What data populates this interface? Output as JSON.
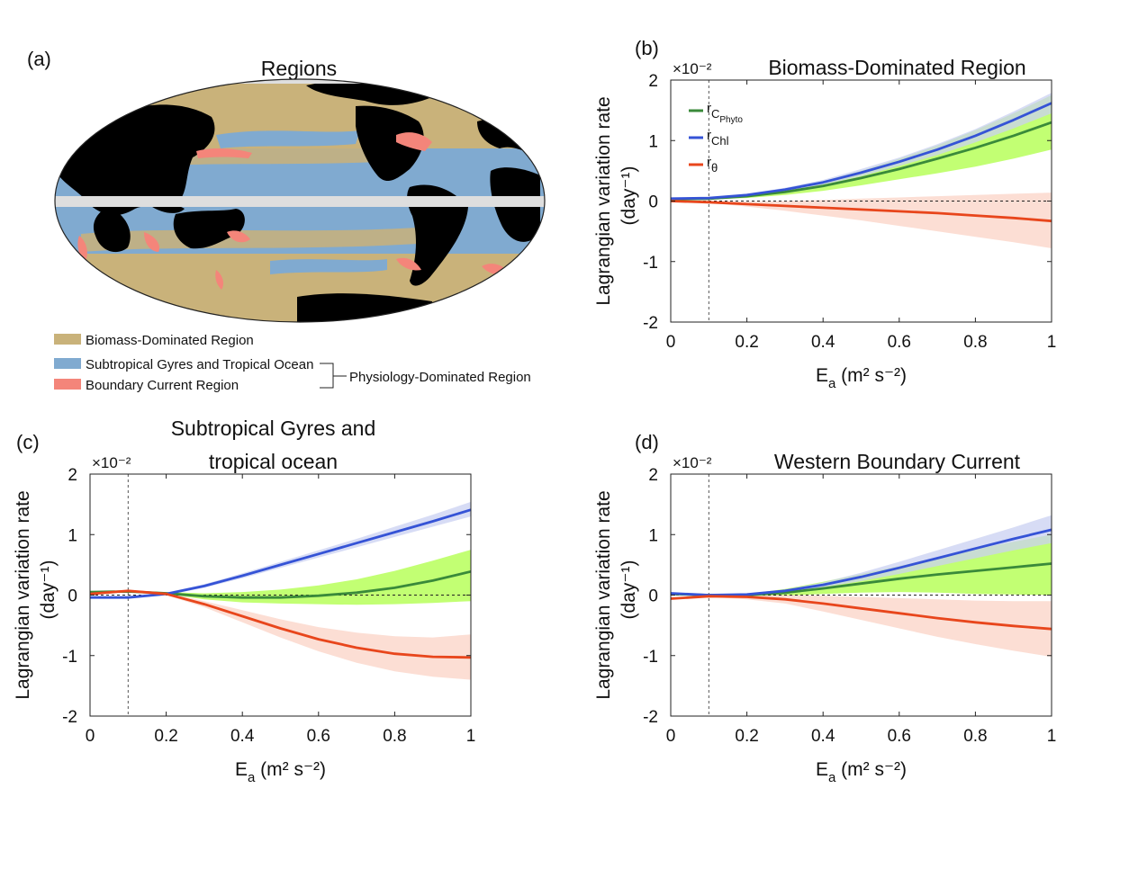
{
  "map_panel": {
    "label": "(a)",
    "title": "Regions",
    "legend": [
      {
        "name": "Biomass-Dominated Region",
        "color": "#c9b27a"
      },
      {
        "name": "Subtropical Gyres and Tropical Ocean",
        "color": "#80aad0"
      },
      {
        "name": "Boundary Current Region",
        "color": "#f4857a"
      }
    ],
    "group_label": "Physiology-Dominated Region",
    "colors": {
      "land": "#000000",
      "ocean_gyre": "#80aad0",
      "biomass": "#c9b27a",
      "boundary": "#f4857a",
      "masked": "#dedede"
    }
  },
  "colors": {
    "c_phyto": "#3a8a3a",
    "c_phyto_band": "#b7ff5a",
    "chl": "#3553d6",
    "chl_band": "#c9d0f2",
    "theta": "#e8461c",
    "theta_band": "#fbd3c6"
  },
  "chart_data": [
    {
      "label": "(b)",
      "type": "line",
      "title": "Biomass-Dominated Region",
      "xlabel": "E",
      "xlabel_sub": "a",
      "xlabel_units": " (m² s⁻²)",
      "ylabel_line1": "Lagrangian variation rate",
      "ylabel_line2": "(day⁻¹)",
      "yscale_label": "×10⁻²",
      "xlim": [
        0,
        1
      ],
      "ylim": [
        -2,
        2
      ],
      "xticks": [
        "0",
        "0.2",
        "0.4",
        "0.6",
        "0.8",
        "1"
      ],
      "yticks": [
        "-2",
        "-1",
        "0",
        "1",
        "2"
      ],
      "vline_x": 0.1,
      "legend": [
        {
          "key": "c_phyto",
          "label": "r",
          "sub": "C",
          "subsub": "Phyto"
        },
        {
          "key": "chl",
          "label": "r",
          "sub": "Chl",
          "subsub": ""
        },
        {
          "key": "theta",
          "label": "r",
          "sub": "θ",
          "subsub": ""
        }
      ],
      "x": [
        0,
        0.1,
        0.2,
        0.3,
        0.4,
        0.5,
        0.6,
        0.7,
        0.8,
        0.9,
        1.0
      ],
      "series": [
        {
          "key": "c_phyto",
          "values": [
            0.03,
            0.04,
            0.08,
            0.15,
            0.25,
            0.38,
            0.53,
            0.7,
            0.88,
            1.08,
            1.3
          ],
          "lower": [
            0.03,
            0.03,
            0.05,
            0.1,
            0.17,
            0.26,
            0.36,
            0.46,
            0.57,
            0.7,
            0.85
          ],
          "upper": [
            0.04,
            0.05,
            0.11,
            0.2,
            0.33,
            0.5,
            0.7,
            0.92,
            1.17,
            1.45,
            1.75
          ]
        },
        {
          "key": "chl",
          "values": [
            0.04,
            0.05,
            0.1,
            0.19,
            0.31,
            0.47,
            0.65,
            0.85,
            1.08,
            1.34,
            1.62
          ],
          "lower": [
            0.03,
            0.04,
            0.08,
            0.16,
            0.27,
            0.41,
            0.58,
            0.76,
            0.97,
            1.2,
            1.45
          ],
          "upper": [
            0.05,
            0.06,
            0.12,
            0.22,
            0.35,
            0.53,
            0.72,
            0.94,
            1.19,
            1.48,
            1.79
          ]
        },
        {
          "key": "theta",
          "values": [
            0.0,
            -0.02,
            -0.05,
            -0.08,
            -0.11,
            -0.14,
            -0.17,
            -0.2,
            -0.24,
            -0.28,
            -0.33
          ],
          "lower": [
            -0.01,
            -0.03,
            -0.09,
            -0.16,
            -0.24,
            -0.32,
            -0.41,
            -0.5,
            -0.59,
            -0.68,
            -0.78
          ],
          "upper": [
            0.01,
            0.0,
            -0.01,
            0.0,
            0.02,
            0.04,
            0.06,
            0.08,
            0.1,
            0.12,
            0.14
          ]
        }
      ]
    },
    {
      "label": "(c)",
      "type": "line",
      "title_lines": [
        "Subtropical Gyres and",
        "tropical ocean"
      ],
      "xlabel": "E",
      "xlabel_sub": "a",
      "xlabel_units": " (m² s⁻²)",
      "ylabel_line1": "Lagrangian variation rate",
      "ylabel_line2": "(day⁻¹)",
      "yscale_label": "×10⁻²",
      "xlim": [
        0,
        1
      ],
      "ylim": [
        -2,
        2
      ],
      "xticks": [
        "0",
        "0.2",
        "0.4",
        "0.6",
        "0.8",
        "1"
      ],
      "yticks": [
        "-2",
        "-1",
        "0",
        "1",
        "2"
      ],
      "vline_x": 0.1,
      "x": [
        0,
        0.1,
        0.2,
        0.3,
        0.4,
        0.5,
        0.6,
        0.7,
        0.8,
        0.9,
        1.0
      ],
      "series": [
        {
          "key": "c_phyto",
          "values": [
            0.05,
            0.06,
            0.03,
            -0.02,
            -0.04,
            -0.04,
            -0.01,
            0.04,
            0.12,
            0.24,
            0.39
          ],
          "lower": [
            0.04,
            0.05,
            0.02,
            -0.07,
            -0.12,
            -0.14,
            -0.15,
            -0.16,
            -0.15,
            -0.13,
            -0.1
          ],
          "upper": [
            0.06,
            0.07,
            0.05,
            0.03,
            0.05,
            0.09,
            0.16,
            0.26,
            0.4,
            0.57,
            0.75
          ]
        },
        {
          "key": "chl",
          "values": [
            -0.04,
            -0.04,
            0.02,
            0.15,
            0.32,
            0.5,
            0.68,
            0.86,
            1.04,
            1.22,
            1.41
          ],
          "lower": [
            -0.05,
            -0.05,
            0.0,
            0.12,
            0.28,
            0.45,
            0.62,
            0.79,
            0.96,
            1.13,
            1.3
          ],
          "upper": [
            -0.03,
            -0.03,
            0.04,
            0.18,
            0.36,
            0.55,
            0.74,
            0.93,
            1.13,
            1.33,
            1.54
          ]
        },
        {
          "key": "theta",
          "values": [
            0.02,
            0.07,
            0.02,
            -0.15,
            -0.35,
            -0.55,
            -0.73,
            -0.87,
            -0.97,
            -1.02,
            -1.03
          ],
          "lower": [
            0.01,
            0.06,
            0.0,
            -0.2,
            -0.45,
            -0.7,
            -0.93,
            -1.12,
            -1.26,
            -1.35,
            -1.4
          ],
          "upper": [
            0.03,
            0.08,
            0.04,
            -0.1,
            -0.25,
            -0.4,
            -0.53,
            -0.62,
            -0.68,
            -0.7,
            -0.65
          ]
        }
      ]
    },
    {
      "label": "(d)",
      "type": "line",
      "title": "Western Boundary Current",
      "xlabel": "E",
      "xlabel_sub": "a",
      "xlabel_units": " (m² s⁻²)",
      "ylabel_line1": "Lagrangian variation rate",
      "ylabel_line2": "(day⁻¹)",
      "yscale_label": "×10⁻²",
      "xlim": [
        0,
        1
      ],
      "ylim": [
        -2,
        2
      ],
      "xticks": [
        "0",
        "0.2",
        "0.4",
        "0.6",
        "0.8",
        "1"
      ],
      "yticks": [
        "-2",
        "-1",
        "0",
        "1",
        "2"
      ],
      "vline_x": 0.1,
      "x": [
        0,
        0.1,
        0.2,
        0.3,
        0.4,
        0.5,
        0.6,
        0.7,
        0.8,
        0.9,
        1.0
      ],
      "series": [
        {
          "key": "c_phyto",
          "values": [
            0.02,
            0.0,
            0.0,
            0.04,
            0.11,
            0.19,
            0.27,
            0.34,
            0.4,
            0.46,
            0.52
          ],
          "lower": [
            0.01,
            -0.01,
            -0.02,
            -0.01,
            0.02,
            0.04,
            0.05,
            0.04,
            0.02,
            0.01,
            0.0
          ],
          "upper": [
            0.03,
            0.01,
            0.02,
            0.1,
            0.22,
            0.35,
            0.48,
            0.62,
            0.76,
            0.88,
            1.0
          ]
        },
        {
          "key": "chl",
          "values": [
            0.03,
            0.0,
            0.01,
            0.07,
            0.17,
            0.3,
            0.45,
            0.61,
            0.77,
            0.93,
            1.08
          ],
          "lower": [
            0.02,
            -0.01,
            0.0,
            0.05,
            0.13,
            0.23,
            0.35,
            0.48,
            0.61,
            0.74,
            0.86
          ],
          "upper": [
            0.04,
            0.01,
            0.02,
            0.09,
            0.21,
            0.37,
            0.55,
            0.74,
            0.93,
            1.12,
            1.32
          ]
        },
        {
          "key": "theta",
          "values": [
            -0.06,
            -0.02,
            -0.03,
            -0.07,
            -0.14,
            -0.22,
            -0.3,
            -0.38,
            -0.45,
            -0.51,
            -0.56
          ],
          "lower": [
            -0.07,
            -0.03,
            -0.07,
            -0.14,
            -0.27,
            -0.41,
            -0.55,
            -0.69,
            -0.81,
            -0.92,
            -1.02
          ],
          "upper": [
            -0.05,
            -0.01,
            0.01,
            0.0,
            -0.01,
            -0.03,
            -0.05,
            -0.07,
            -0.09,
            -0.1,
            -0.1
          ]
        }
      ]
    }
  ]
}
